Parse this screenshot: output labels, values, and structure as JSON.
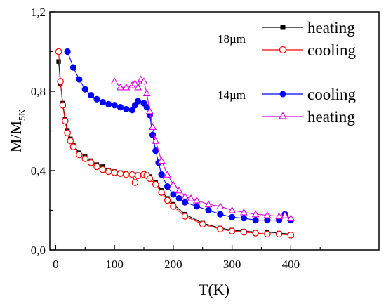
{
  "chart_data": {
    "type": "scatter",
    "title": "",
    "xlabel": "T(K)",
    "ylabel": {
      "main": "M/M",
      "sub": "5K"
    },
    "xlim": [
      -10,
      550
    ],
    "ylim": [
      0,
      1.2
    ],
    "xticks": [
      0,
      100,
      200,
      300,
      400
    ],
    "yticks": [
      "0,0",
      "0,4",
      "0,8",
      "1,2"
    ],
    "ytick_values": [
      0,
      0.4,
      0.8,
      1.2
    ],
    "grid": false,
    "legend_placement": "top-right",
    "group_labels": [
      "18µm",
      "14µm"
    ],
    "series": [
      {
        "name": "heating",
        "group": "18µm",
        "color": "#000000",
        "marker": "filled-square",
        "x": [
          5,
          8,
          12,
          16,
          20,
          25,
          30,
          40,
          50,
          60,
          70,
          80,
          90,
          100,
          110,
          120,
          130,
          140,
          150,
          155,
          160,
          170,
          180,
          190,
          200,
          220,
          250,
          280,
          300,
          320,
          340,
          360,
          380,
          400
        ],
        "y": [
          0.95,
          0.84,
          0.74,
          0.66,
          0.6,
          0.56,
          0.53,
          0.49,
          0.47,
          0.45,
          0.43,
          0.42,
          0.4,
          0.395,
          0.39,
          0.385,
          0.38,
          0.38,
          0.385,
          0.38,
          0.37,
          0.34,
          0.3,
          0.26,
          0.23,
          0.18,
          0.135,
          0.11,
          0.1,
          0.095,
          0.09,
          0.09,
          0.085,
          0.08
        ]
      },
      {
        "name": "cooling",
        "group": "18µm",
        "color": "#ff0000",
        "marker": "open-circle",
        "x": [
          5,
          8,
          12,
          16,
          20,
          25,
          30,
          40,
          50,
          60,
          70,
          80,
          90,
          100,
          110,
          120,
          130,
          135,
          140,
          150,
          155,
          160,
          170,
          180,
          190,
          200,
          220,
          250,
          280,
          300,
          320,
          340,
          360,
          380,
          400
        ],
        "y": [
          1.0,
          0.85,
          0.73,
          0.65,
          0.59,
          0.55,
          0.52,
          0.48,
          0.46,
          0.44,
          0.42,
          0.405,
          0.395,
          0.39,
          0.385,
          0.38,
          0.38,
          0.34,
          0.375,
          0.38,
          0.375,
          0.36,
          0.33,
          0.29,
          0.25,
          0.22,
          0.17,
          0.13,
          0.105,
          0.095,
          0.09,
          0.085,
          0.08,
          0.08,
          0.075
        ]
      },
      {
        "name": "cooling",
        "group": "14µm",
        "color": "#0000ff",
        "marker": "filled-circle",
        "x": [
          20,
          30,
          40,
          50,
          60,
          70,
          80,
          90,
          100,
          110,
          120,
          130,
          135,
          140,
          150,
          155,
          160,
          165,
          170,
          175,
          180,
          190,
          200,
          210,
          220,
          240,
          260,
          280,
          300,
          320,
          340,
          360,
          380,
          390,
          400
        ],
        "y": [
          1.0,
          0.92,
          0.86,
          0.81,
          0.78,
          0.76,
          0.745,
          0.735,
          0.73,
          0.72,
          0.71,
          0.705,
          0.73,
          0.75,
          0.74,
          0.72,
          0.68,
          0.58,
          0.5,
          0.44,
          0.38,
          0.32,
          0.28,
          0.26,
          0.24,
          0.22,
          0.2,
          0.18,
          0.165,
          0.16,
          0.15,
          0.15,
          0.15,
          0.18,
          0.15
        ]
      },
      {
        "name": "heating",
        "group": "14µm",
        "color": "#dd00dd",
        "marker": "open-triangle",
        "x": [
          100,
          110,
          120,
          130,
          135,
          140,
          145,
          150,
          155,
          160,
          165,
          170,
          180,
          190,
          200,
          210,
          220,
          230,
          240,
          260,
          280,
          300,
          320,
          340,
          360,
          380,
          390,
          400
        ],
        "y": [
          0.85,
          0.82,
          0.82,
          0.83,
          0.84,
          0.82,
          0.86,
          0.85,
          0.79,
          0.7,
          0.62,
          0.55,
          0.45,
          0.38,
          0.33,
          0.3,
          0.27,
          0.26,
          0.25,
          0.23,
          0.22,
          0.2,
          0.19,
          0.18,
          0.175,
          0.17,
          0.175,
          0.16
        ]
      }
    ]
  }
}
